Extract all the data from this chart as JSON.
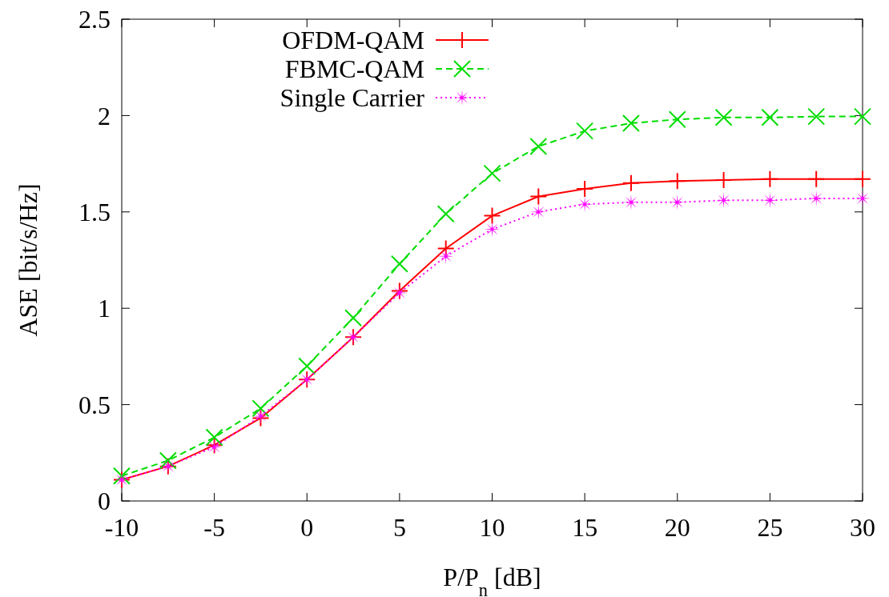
{
  "chart_data": {
    "type": "line",
    "xlabel": "P/P$_{n}$ [dB]",
    "ylabel": "ASE [bit/s/Hz]",
    "x": [
      -10,
      -7.5,
      -5,
      -2.5,
      0,
      2.5,
      5,
      7.5,
      10,
      12.5,
      15,
      17.5,
      20,
      22.5,
      25,
      27.5,
      30
    ],
    "series": [
      {
        "name": "OFDM-QAM",
        "color": "#ff0000",
        "marker": "plus",
        "line_style": "solid",
        "values": [
          0.11,
          0.18,
          0.29,
          0.43,
          0.63,
          0.85,
          1.09,
          1.31,
          1.48,
          1.58,
          1.62,
          1.65,
          1.66,
          1.665,
          1.67,
          1.67,
          1.67
        ]
      },
      {
        "name": "FBMC-QAM",
        "color": "#00dd00",
        "marker": "cross",
        "line_style": "dashed",
        "values": [
          0.13,
          0.21,
          0.33,
          0.48,
          0.7,
          0.95,
          1.23,
          1.49,
          1.7,
          1.84,
          1.92,
          1.96,
          1.98,
          1.99,
          1.99,
          1.995,
          1.995
        ]
      },
      {
        "name": "Single Carrier",
        "color": "#ff00ff",
        "marker": "star",
        "line_style": "dotted",
        "values": [
          0.11,
          0.18,
          0.28,
          0.44,
          0.63,
          0.85,
          1.08,
          1.27,
          1.41,
          1.5,
          1.54,
          1.55,
          1.55,
          1.56,
          1.56,
          1.57,
          1.57
        ]
      }
    ],
    "xlim": [
      -10,
      30
    ],
    "xticks": [
      -10,
      -5,
      0,
      5,
      10,
      15,
      20,
      25,
      30
    ],
    "ylim": [
      0,
      2.5
    ],
    "yticks": [
      0,
      0.5,
      1,
      1.5,
      2,
      2.5
    ],
    "legend": "top left",
    "grid": false
  }
}
